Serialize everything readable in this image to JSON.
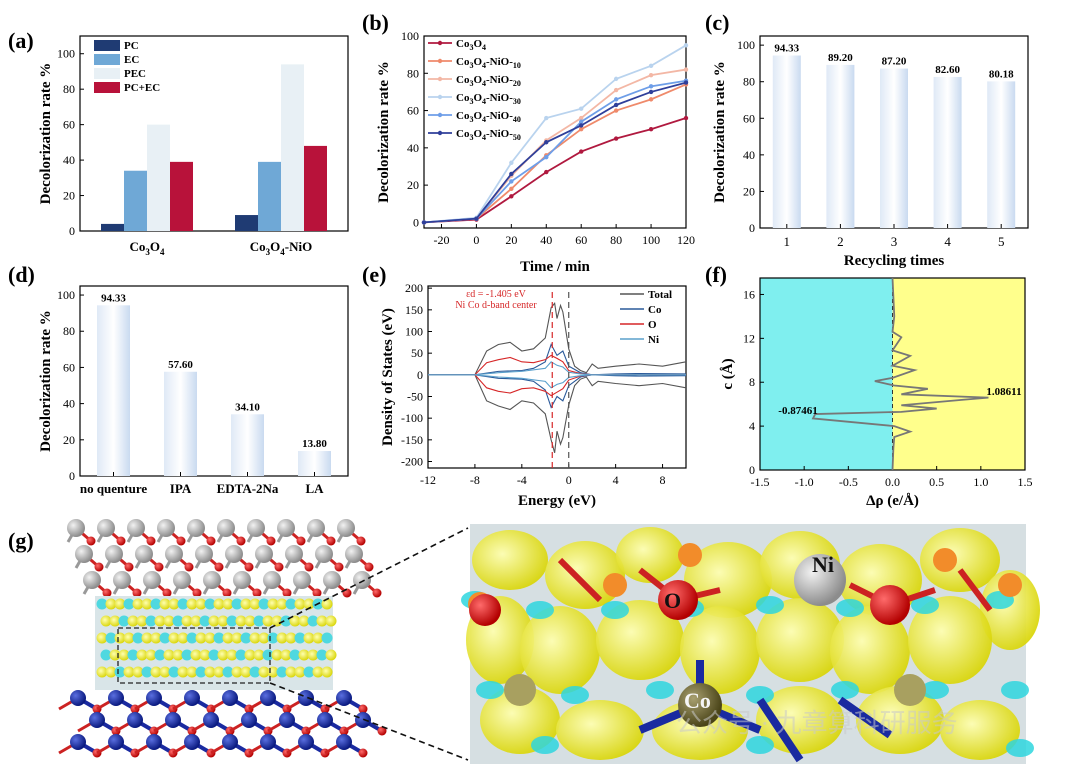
{
  "panels": {
    "a": {
      "letter": "(a)"
    },
    "b": {
      "letter": "(b)"
    },
    "c": {
      "letter": "(c)"
    },
    "d": {
      "letter": "(d)"
    },
    "e": {
      "letter": "(e)"
    },
    "f": {
      "letter": "(f)"
    },
    "g": {
      "letter": "(g)"
    }
  },
  "structure": {
    "atom_labels": [
      "O",
      "Ni",
      "Co"
    ],
    "watermark": "公众号 · 九章算科研服务"
  },
  "colors": {
    "a_series": [
      "#1f3b73",
      "#6fa8d6",
      "#e8f0f5",
      "#b8123a"
    ],
    "b_series": [
      "#b0193f",
      "#ef8a6b",
      "#f3b7a5",
      "#b9d3ee",
      "#6e9ee8",
      "#2f3f9a"
    ],
    "e_series": [
      "#555555",
      "#2a5a9a",
      "#d62728",
      "#5aa0cc"
    ],
    "cyan": "#7fefef",
    "yellow": "#ffff8c"
  },
  "chart_data": [
    {
      "panel": "a",
      "type": "bar",
      "categories": [
        "Co3O4",
        "Co3O4-NiO"
      ],
      "series": [
        {
          "name": "PC",
          "values": [
            4,
            9
          ]
        },
        {
          "name": "EC",
          "values": [
            34,
            39
          ]
        },
        {
          "name": "PEC",
          "values": [
            60,
            94
          ]
        },
        {
          "name": "PC+EC",
          "values": [
            39,
            48
          ]
        }
      ],
      "ylabel": "Decolorization rate %",
      "ylim": [
        0,
        110
      ],
      "yticks": [
        0,
        20,
        40,
        60,
        80,
        100
      ],
      "legend": "top-left"
    },
    {
      "panel": "b",
      "type": "line",
      "x": [
        -30,
        0,
        20,
        40,
        60,
        80,
        100,
        120
      ],
      "series": [
        {
          "name": "Co3O4",
          "values": [
            0,
            1.5,
            14,
            27,
            38,
            45,
            50,
            56
          ]
        },
        {
          "name": "Co3O4-NiO-10",
          "values": [
            0,
            2,
            18,
            36,
            50,
            60,
            66,
            74
          ]
        },
        {
          "name": "Co3O4-NiO-20",
          "values": [
            0,
            2,
            25,
            44,
            56,
            71,
            79,
            82
          ]
        },
        {
          "name": "Co3O4-NiO-30",
          "values": [
            0,
            2.5,
            32,
            56,
            61,
            77,
            84,
            95
          ]
        },
        {
          "name": "Co3O4-NiO-40",
          "values": [
            0,
            2,
            22,
            35,
            54,
            66,
            73,
            76
          ]
        },
        {
          "name": "Co3O4-NiO-50",
          "values": [
            0,
            2,
            26,
            43,
            52,
            63,
            70,
            75
          ]
        }
      ],
      "xlabel": "Time / min",
      "ylabel": "Decolorization rate %",
      "xlim": [
        -30,
        120
      ],
      "ylim": [
        -3,
        100
      ],
      "xticks": [
        -20,
        0,
        20,
        40,
        60,
        80,
        100,
        120
      ],
      "yticks": [
        0,
        20,
        40,
        60,
        80,
        100
      ],
      "legend": "top-left"
    },
    {
      "panel": "c",
      "type": "bar",
      "categories": [
        "1",
        "2",
        "3",
        "4",
        "5"
      ],
      "values": [
        94.33,
        89.2,
        87.2,
        82.6,
        80.18
      ],
      "data_labels": [
        "94.33",
        "89.20",
        "87.20",
        "82.60",
        "80.18"
      ],
      "xlabel": "Recycling times",
      "ylabel": "Decolorization rate %",
      "ylim": [
        0,
        105
      ],
      "yticks": [
        0,
        20,
        40,
        60,
        80,
        100
      ]
    },
    {
      "panel": "d",
      "type": "bar",
      "categories": [
        "no quenture",
        "IPA",
        "EDTA-2Na",
        "LA"
      ],
      "values": [
        94.33,
        57.6,
        34.1,
        13.8
      ],
      "data_labels": [
        "94.33",
        "57.60",
        "34.10",
        "13.80"
      ],
      "ylabel": "Decolorization rate %",
      "ylim": [
        0,
        105
      ],
      "yticks": [
        0,
        20,
        40,
        60,
        80,
        100
      ]
    },
    {
      "panel": "e",
      "type": "line",
      "xlabel": "Energy (eV)",
      "ylabel": "Density of States (eV)",
      "xlim": [
        -12,
        10
      ],
      "ylim": [
        -215,
        205
      ],
      "xticks": [
        -12,
        -8,
        -4,
        0,
        4,
        8
      ],
      "yticks": [
        -200,
        -150,
        -100,
        -50,
        0,
        50,
        100,
        150,
        200
      ],
      "annotation": [
        "εd = -1.405 eV",
        "Ni Co d-band center"
      ],
      "vlines": [
        -1.405,
        0
      ],
      "series": [
        {
          "name": "Total",
          "x": [
            -12,
            -8,
            -7,
            -6,
            -5,
            -4,
            -3,
            -2,
            -1.5,
            -1.2,
            -1,
            -0.7,
            -0.5,
            0,
            0.5,
            1,
            1.5,
            2,
            2.5,
            4,
            6,
            8,
            10
          ],
          "values": [
            0,
            0,
            55,
            70,
            75,
            55,
            60,
            85,
            155,
            165,
            130,
            160,
            145,
            60,
            20,
            10,
            5,
            25,
            15,
            20,
            25,
            20,
            30
          ]
        },
        {
          "name": "Total-down",
          "x": [
            -12,
            -8,
            -7,
            -6,
            -5,
            -4,
            -3,
            -2,
            -1.5,
            -1.2,
            -1,
            -0.7,
            -0.5,
            0,
            0.5,
            1,
            1.5,
            2,
            2.5,
            4,
            6,
            8,
            10
          ],
          "values": [
            0,
            0,
            -60,
            -72,
            -80,
            -60,
            -65,
            -90,
            -150,
            -180,
            -130,
            -160,
            -145,
            -70,
            -25,
            -10,
            -5,
            -25,
            -15,
            -20,
            -25,
            -20,
            -30
          ]
        },
        {
          "name": "Co",
          "x": [
            -12,
            -8,
            -6,
            -4,
            -3,
            -2,
            -1.5,
            -1,
            -0.5,
            0,
            1,
            2,
            4,
            6,
            10
          ],
          "values": [
            0,
            0,
            8,
            10,
            15,
            30,
            70,
            45,
            55,
            20,
            5,
            0,
            2,
            3,
            2
          ]
        },
        {
          "name": "Co-down",
          "x": [
            -12,
            -8,
            -6,
            -4,
            -3,
            -2,
            -1.5,
            -1,
            -0.5,
            0,
            1,
            2,
            4,
            6,
            10
          ],
          "values": [
            0,
            0,
            -8,
            -10,
            -15,
            -35,
            -75,
            -50,
            -60,
            -25,
            -5,
            0,
            -2,
            -3,
            -2
          ]
        },
        {
          "name": "O",
          "x": [
            -12,
            -8,
            -7,
            -6,
            -5,
            -4,
            -3,
            -2,
            -1.5,
            -1,
            -0.5,
            0,
            1,
            2,
            10
          ],
          "values": [
            0,
            0,
            28,
            35,
            40,
            30,
            28,
            35,
            45,
            38,
            30,
            10,
            3,
            0,
            0
          ]
        },
        {
          "name": "O-down",
          "x": [
            -12,
            -8,
            -7,
            -6,
            -5,
            -4,
            -3,
            -2,
            -1.5,
            -1,
            -0.5,
            0,
            1,
            2,
            10
          ],
          "values": [
            0,
            0,
            -30,
            -38,
            -42,
            -32,
            -30,
            -38,
            -48,
            -40,
            -32,
            -12,
            -3,
            0,
            0
          ]
        },
        {
          "name": "Ni",
          "x": [
            -12,
            -8,
            -6,
            -4,
            -2,
            -1.5,
            -1,
            -0.5,
            0,
            1,
            2,
            10
          ],
          "values": [
            0,
            0,
            5,
            8,
            15,
            30,
            22,
            18,
            6,
            2,
            0,
            0
          ]
        },
        {
          "name": "Ni-down",
          "x": [
            -12,
            -8,
            -6,
            -4,
            -2,
            -1.5,
            -1,
            -0.5,
            0,
            1,
            2,
            10
          ],
          "values": [
            0,
            0,
            -5,
            -8,
            -15,
            -30,
            -22,
            -18,
            -6,
            -2,
            0,
            0
          ]
        }
      ],
      "legend": "top-right"
    },
    {
      "panel": "f",
      "type": "line",
      "xlabel": "Δρ (e/Å)",
      "ylabel": "c (Å)",
      "xlim": [
        -1.5,
        1.5
      ],
      "ylim": [
        0,
        17.5
      ],
      "xticks": [
        -1.5,
        -1.0,
        -0.5,
        0.0,
        0.5,
        1.0,
        1.5
      ],
      "yticks": [
        0,
        4,
        8,
        12,
        16
      ],
      "annotations": [
        "-0.87461",
        "1.08611"
      ],
      "points": [
        {
          "x": 0,
          "y": 0
        },
        {
          "x": 0.01,
          "y": 2
        },
        {
          "x": 0.02,
          "y": 3
        },
        {
          "x": 0.2,
          "y": 3.5
        },
        {
          "x": 0.02,
          "y": 4
        },
        {
          "x": -0.9,
          "y": 4.7
        },
        {
          "x": -0.87461,
          "y": 5.1
        },
        {
          "x": 0.1,
          "y": 5.3
        },
        {
          "x": 0.5,
          "y": 5.6
        },
        {
          "x": 0.1,
          "y": 5.9
        },
        {
          "x": 0.8,
          "y": 6.4
        },
        {
          "x": 1.08611,
          "y": 6.6
        },
        {
          "x": 0.1,
          "y": 6.9
        },
        {
          "x": 0.4,
          "y": 7.4
        },
        {
          "x": 0.02,
          "y": 7.7
        },
        {
          "x": -0.2,
          "y": 8.1
        },
        {
          "x": 0.0,
          "y": 8.4
        },
        {
          "x": 0.25,
          "y": 9.1
        },
        {
          "x": 0.0,
          "y": 9.5
        },
        {
          "x": 0.2,
          "y": 10.4
        },
        {
          "x": 0.0,
          "y": 10.9
        },
        {
          "x": 0.1,
          "y": 12.1
        },
        {
          "x": 0.0,
          "y": 12.6
        },
        {
          "x": 0.02,
          "y": 14
        },
        {
          "x": 0.0,
          "y": 17.5
        }
      ],
      "region_colors": [
        "#7fefef",
        "#ffff8c"
      ]
    }
  ]
}
